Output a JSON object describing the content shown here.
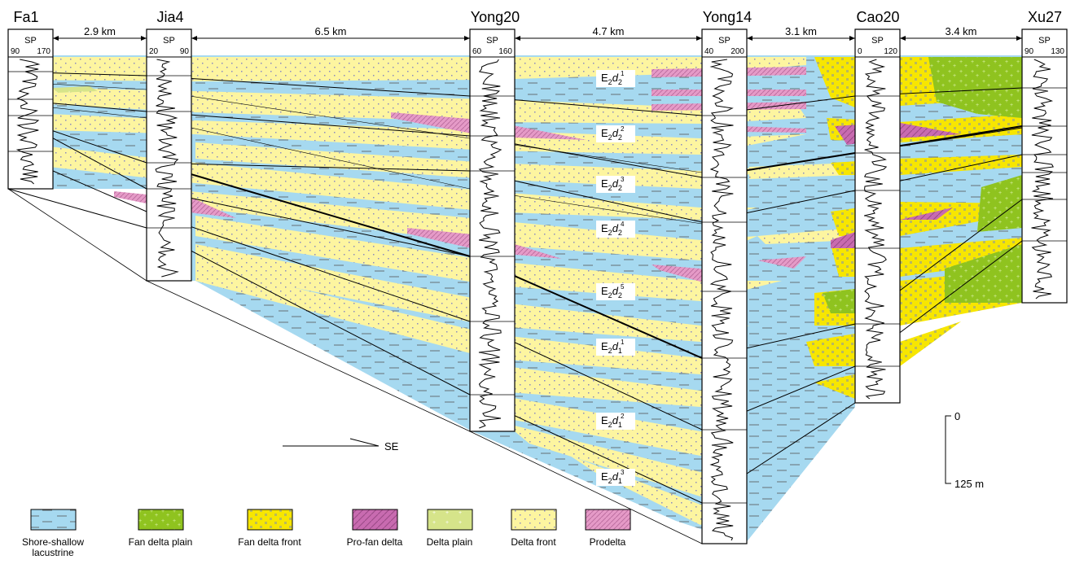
{
  "wells": [
    {
      "name": "Fa1",
      "log": "SP",
      "range": [
        "90",
        "170"
      ]
    },
    {
      "name": "Jia4",
      "log": "SP",
      "range": [
        "20",
        "90"
      ]
    },
    {
      "name": "Yong20",
      "log": "SP",
      "range": [
        "60",
        "160"
      ]
    },
    {
      "name": "Yong14",
      "log": "SP",
      "range": [
        "40",
        "200"
      ]
    },
    {
      "name": "Cao20",
      "log": "SP",
      "range": [
        "0",
        "120"
      ]
    },
    {
      "name": "Xu27",
      "log": "SP",
      "range": [
        "90",
        "130"
      ]
    }
  ],
  "distances": [
    "2.9 km",
    "6.5 km",
    "4.7 km",
    "3.1 km",
    "3.4 km"
  ],
  "units": [
    {
      "base": "E",
      "sub1": "2",
      "italic": "d",
      "sub2": "2",
      "sup": "1"
    },
    {
      "base": "E",
      "sub1": "2",
      "italic": "d",
      "sub2": "2",
      "sup": "2"
    },
    {
      "base": "E",
      "sub1": "2",
      "italic": "d",
      "sub2": "2",
      "sup": "3"
    },
    {
      "base": "E",
      "sub1": "2",
      "italic": "d",
      "sub2": "2",
      "sup": "4"
    },
    {
      "base": "E",
      "sub1": "2",
      "italic": "d",
      "sub2": "2",
      "sup": "5"
    },
    {
      "base": "E",
      "sub1": "2",
      "italic": "d",
      "sub2": "1",
      "sup": "1"
    },
    {
      "base": "E",
      "sub1": "2",
      "italic": "d",
      "sub2": "1",
      "sup": "2"
    },
    {
      "base": "E",
      "sub1": "2",
      "italic": "d",
      "sub2": "1",
      "sup": "3"
    }
  ],
  "direction": "SE",
  "scale": {
    "top": "0",
    "bottom": "125 m"
  },
  "legend": [
    {
      "label": "Shore-shallow",
      "label2": "lacustrine",
      "pattern": "lake"
    },
    {
      "label": "Fan delta plain",
      "pattern": "fanplain"
    },
    {
      "label": "Fan delta front",
      "pattern": "fanfront"
    },
    {
      "label": "Pro-fan delta",
      "pattern": "profan"
    },
    {
      "label": "Delta plain",
      "pattern": "dplain"
    },
    {
      "label": "Delta front",
      "pattern": "dfront"
    },
    {
      "label": "Prodelta",
      "pattern": "prodelta"
    }
  ],
  "colors": {
    "lake": "#a6d9f0",
    "delta_front": "#fdf5a0",
    "fan_front": "#f7e600",
    "fan_plain": "#8fc31f",
    "pro_fan": "#c86bb0",
    "prodelta": "#e59ac7",
    "delta_plain": "#d6e48a"
  }
}
